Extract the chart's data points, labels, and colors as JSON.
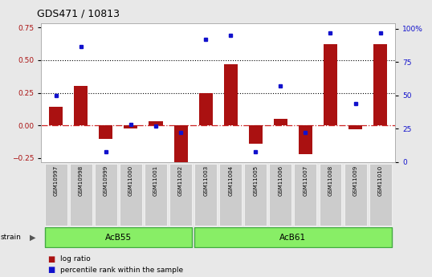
{
  "title": "GDS471 / 10813",
  "samples": [
    "GSM10997",
    "GSM10998",
    "GSM10999",
    "GSM11000",
    "GSM11001",
    "GSM11002",
    "GSM11003",
    "GSM11004",
    "GSM11005",
    "GSM11006",
    "GSM11007",
    "GSM11008",
    "GSM11009",
    "GSM11010"
  ],
  "log_ratio": [
    0.14,
    0.3,
    -0.1,
    -0.02,
    0.03,
    -0.3,
    0.25,
    0.47,
    -0.14,
    0.05,
    -0.22,
    0.62,
    -0.03,
    0.62
  ],
  "percentile_rank": [
    50,
    87,
    8,
    28,
    27,
    22,
    92,
    95,
    8,
    57,
    22,
    97,
    44,
    97
  ],
  "strains": [
    {
      "label": "AcB55",
      "start": 0,
      "end": 6
    },
    {
      "label": "AcB61",
      "start": 6,
      "end": 14
    }
  ],
  "ylim_left": [
    -0.28,
    0.78
  ],
  "ylim_right": [
    0,
    104
  ],
  "hlines": [
    0.5,
    0.25
  ],
  "bar_color": "#aa1111",
  "dot_color": "#1111cc",
  "zero_line_color": "#cc2222",
  "background_color": "#e8e8e8",
  "plot_bg": "#ffffff",
  "strain_bg_color": "#88ee66",
  "strain_border_color": "#44aa44",
  "tick_label_bg": "#cccccc"
}
